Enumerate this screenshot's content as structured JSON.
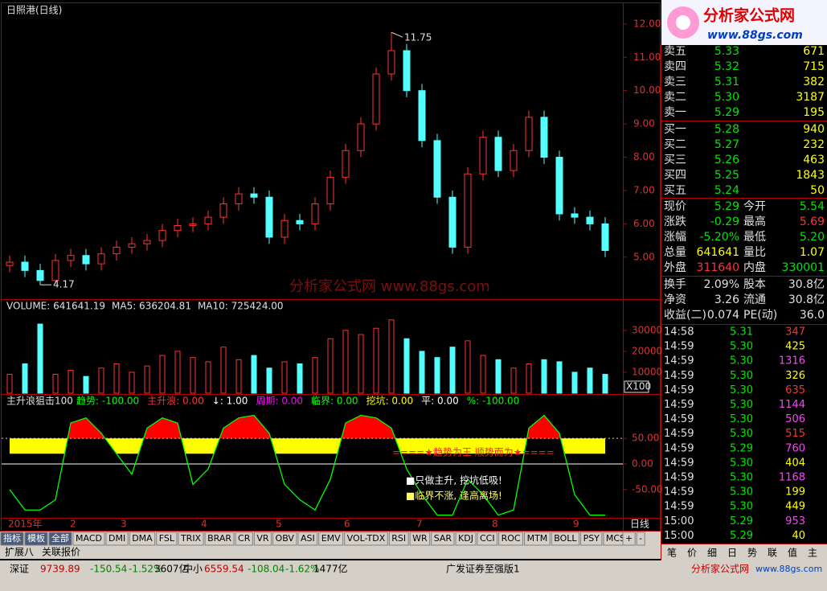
{
  "chart_data": [
    {
      "type": "candlestick",
      "title": "日照港(日线)",
      "open": [
        4.75,
        4.85,
        4.6,
        4.3,
        4.9,
        5.05,
        4.8,
        5.1,
        5.3,
        5.4,
        5.5,
        5.8,
        5.95,
        6.0,
        6.2,
        6.6,
        6.9,
        6.8,
        5.6,
        6.1,
        6.0,
        6.6,
        7.4,
        8.2,
        9.0,
        10.5,
        11.2,
        10.0,
        8.5,
        6.8,
        5.3,
        7.5,
        8.6,
        7.6,
        8.2,
        9.2,
        8.0,
        6.3,
        6.2,
        6.0
      ],
      "high": [
        5.05,
        5.05,
        4.8,
        5.1,
        5.25,
        5.25,
        5.3,
        5.5,
        5.6,
        5.7,
        6.0,
        6.15,
        6.2,
        6.4,
        6.8,
        7.1,
        7.1,
        7.0,
        6.3,
        6.3,
        6.8,
        7.6,
        8.4,
        9.2,
        10.7,
        11.75,
        11.4,
        10.2,
        8.7,
        7.0,
        7.7,
        8.8,
        8.8,
        8.4,
        9.4,
        9.4,
        8.2,
        6.5,
        6.4,
        6.2
      ],
      "low": [
        4.55,
        4.4,
        4.17,
        4.2,
        4.7,
        4.6,
        4.6,
        4.9,
        5.1,
        5.2,
        5.3,
        5.6,
        5.75,
        5.8,
        6.0,
        6.4,
        6.6,
        5.4,
        5.4,
        5.8,
        5.8,
        6.4,
        7.2,
        8.0,
        8.8,
        10.3,
        9.8,
        8.3,
        6.6,
        5.1,
        5.1,
        7.3,
        7.4,
        7.4,
        8.0,
        7.8,
        6.1,
        6.0,
        5.8,
        5.0
      ],
      "close": [
        4.85,
        4.6,
        4.3,
        4.9,
        5.05,
        4.8,
        5.1,
        5.3,
        5.4,
        5.5,
        5.8,
        5.95,
        6.0,
        6.2,
        6.6,
        6.9,
        6.8,
        5.6,
        6.1,
        6.0,
        6.6,
        7.4,
        8.2,
        9.0,
        10.5,
        11.2,
        10.0,
        8.5,
        6.8,
        5.3,
        7.5,
        8.6,
        7.6,
        8.2,
        9.2,
        8.0,
        6.3,
        6.2,
        6.0,
        5.2
      ],
      "up_color": "#ff3232",
      "down_color": "#54ffff",
      "ylim": [
        3.74,
        12.6
      ],
      "yticks": [
        {
          "value": 12,
          "label": "12.00"
        },
        {
          "value": 11,
          "label": "11.00"
        },
        {
          "value": 10,
          "label": "10.00"
        },
        {
          "value": 9,
          "label": "9.00"
        },
        {
          "value": 8,
          "label": "8.00"
        },
        {
          "value": 7,
          "label": "7.00"
        },
        {
          "value": 6,
          "label": "6.00"
        },
        {
          "value": 5,
          "label": "5.00"
        }
      ],
      "high_mark": 11.75,
      "low_mark": 4.17,
      "watermark": "分析家公式网 www.88gs.com",
      "x_labels": [
        "2015年",
        "2",
        "3",
        "4",
        "5",
        "6",
        "7",
        "8",
        "9"
      ]
    },
    {
      "type": "bar",
      "legend": [
        "VOLUME: 641641.19",
        "MA5: 636204.81",
        "MA10: 725424.00"
      ],
      "values": [
        9000,
        14000,
        33000,
        9000,
        11000,
        8000,
        12000,
        14000,
        10000,
        13000,
        18000,
        20000,
        17000,
        15000,
        22000,
        16000,
        18000,
        12000,
        15000,
        14000,
        17000,
        26000,
        30000,
        28000,
        31000,
        35000,
        26000,
        20000,
        17000,
        22000,
        25000,
        18000,
        16000,
        12000,
        14000,
        16000,
        15000,
        10000,
        12000,
        9000
      ],
      "ylim": [
        0,
        38000
      ],
      "yticks": [
        10000,
        20000,
        30000
      ],
      "unit_label": "X100"
    },
    {
      "type": "line",
      "title": "主升浪狙击100",
      "legend": [
        {
          "text": "趋势: -100.00",
          "color": "#00ff00"
        },
        {
          "text": "主升浪: 0.00",
          "color": "#ff3232"
        },
        {
          "text": "↓: 1.00",
          "color": "#ffffff"
        },
        {
          "text": "周期: 0.00",
          "color": "#ff00ff"
        },
        {
          "text": "临界: 0.00",
          "color": "#00ff00"
        },
        {
          "text": "挖坑: 0.00",
          "color": "#ffff00"
        },
        {
          "text": "平: 0.00",
          "color": "#ffffff"
        },
        {
          "text": "%: -100.00",
          "color": "#00ff00"
        }
      ],
      "values": [
        -50,
        -90,
        -90,
        -70,
        80,
        90,
        60,
        20,
        -20,
        70,
        90,
        80,
        -40,
        -10,
        70,
        90,
        95,
        60,
        -40,
        -70,
        -90,
        -30,
        80,
        95,
        90,
        70,
        -10,
        -60,
        -100,
        -100,
        -30,
        -60,
        -100,
        -90,
        70,
        95,
        60,
        -60,
        -100,
        -100
      ],
      "color": "#00ff00",
      "ylim": [
        -110,
        110
      ],
      "yticks": [
        {
          "value": 50,
          "label": "50.00"
        },
        {
          "value": 0,
          "label": "0.00"
        },
        {
          "value": -50,
          "label": "-50.00"
        }
      ],
      "annotations": [
        "====★趋势为王 顺势而为★====",
        "■只做主升, 挖坑低吸!",
        "■临界不涨, 逢高离场!"
      ],
      "period_label": "日线"
    }
  ],
  "tabs": [
    "指标",
    "模板",
    "全部",
    "MACD",
    "DMI",
    "DMA",
    "FSL",
    "TRIX",
    "BRAR",
    "CR",
    "VR",
    "OBV",
    "ASI",
    "EMV",
    "VOL-TDX",
    "RSI",
    "WR",
    "SAR",
    "KDJ",
    "CCI",
    "ROC",
    "MTM",
    "BOLL",
    "PSY",
    "MCST",
    "+",
    "-"
  ],
  "tabs2": [
    "扩展八",
    "关联报价"
  ],
  "status": [
    "深证",
    "9739.89",
    "-150.54",
    "-1.52%",
    "3607亿",
    "中小",
    "6559.54",
    "-108.04",
    "-1.62%",
    "1477亿",
    "广发证券至强版1"
  ],
  "logo": {
    "name": "分析家公式网",
    "url": "www.88gs.com"
  },
  "order_book": [
    {
      "label": "卖五",
      "price": "5.33",
      "volume": "671"
    },
    {
      "label": "卖四",
      "price": "5.32",
      "volume": "715"
    },
    {
      "label": "卖三",
      "price": "5.31",
      "volume": "382"
    },
    {
      "label": "卖二",
      "price": "5.30",
      "volume": "3187"
    },
    {
      "label": "卖一",
      "price": "5.29",
      "volume": "195"
    },
    {
      "label": "买一",
      "price": "5.28",
      "volume": "940"
    },
    {
      "label": "买二",
      "price": "5.27",
      "volume": "232"
    },
    {
      "label": "买三",
      "price": "5.26",
      "volume": "463"
    },
    {
      "label": "买四",
      "price": "5.25",
      "volume": "1843"
    },
    {
      "label": "买五",
      "price": "5.24",
      "volume": "50"
    }
  ],
  "stats": [
    [
      "现价",
      "5.29",
      "今开",
      "5.54"
    ],
    [
      "涨跌",
      "-0.29",
      "最高",
      "5.69"
    ],
    [
      "涨幅",
      "-5.20%",
      "最低",
      "5.20"
    ],
    [
      "总量",
      "641641",
      "量比",
      "1.07"
    ],
    [
      "外盘",
      "311640",
      "内盘",
      "330001"
    ],
    [
      "换手",
      "2.09%",
      "股本",
      "30.8亿"
    ],
    [
      "净资",
      "3.26",
      "流通",
      "30.8亿"
    ],
    [
      "收益(二)",
      "0.074",
      "PE(动)",
      "36.0"
    ]
  ],
  "stat_colors": [
    [
      "#00e600",
      "#00e600"
    ],
    [
      "#00e600",
      "#ff3232"
    ],
    [
      "#00e600",
      "#00e600"
    ],
    [
      "#ffff00",
      "#ffff00"
    ],
    [
      "#ff3232",
      "#00e600"
    ],
    [
      "#e0e0e0",
      "#e0e0e0"
    ],
    [
      "#e0e0e0",
      "#e0e0e0"
    ],
    [
      "#e0e0e0",
      "#e0e0e0"
    ]
  ],
  "trades": [
    {
      "time": "14:58",
      "price": "5.31",
      "volume": "347",
      "color": "#ff3232"
    },
    {
      "time": "14:59",
      "price": "5.30",
      "volume": "425",
      "color": "#ffff00"
    },
    {
      "time": "14:59",
      "price": "5.30",
      "volume": "1316",
      "color": "#ff40ff"
    },
    {
      "time": "14:59",
      "price": "5.30",
      "volume": "326",
      "color": "#ffff00"
    },
    {
      "time": "14:59",
      "price": "5.30",
      "volume": "635",
      "color": "#ff3232"
    },
    {
      "time": "14:59",
      "price": "5.30",
      "volume": "1144",
      "color": "#ff40ff"
    },
    {
      "time": "14:59",
      "price": "5.30",
      "volume": "506",
      "color": "#ff40ff"
    },
    {
      "time": "14:59",
      "price": "5.30",
      "volume": "515",
      "color": "#ff3232"
    },
    {
      "time": "14:59",
      "price": "5.29",
      "volume": "760",
      "color": "#ff40ff"
    },
    {
      "time": "14:59",
      "price": "5.30",
      "volume": "404",
      "color": "#ffff00"
    },
    {
      "time": "14:59",
      "price": "5.30",
      "volume": "1168",
      "color": "#ff40ff"
    },
    {
      "time": "14:59",
      "price": "5.30",
      "volume": "199",
      "color": "#ffff00"
    },
    {
      "time": "14:59",
      "price": "5.30",
      "volume": "449",
      "color": "#ffff00"
    },
    {
      "time": "15:00",
      "price": "5.29",
      "volume": "953",
      "color": "#ff40ff"
    },
    {
      "time": "15:00",
      "price": "5.29",
      "volume": "40",
      "color": "#ffff00"
    }
  ],
  "panel_tabs": [
    "笔",
    "价",
    "细",
    "日",
    "势",
    "联",
    "值",
    "主"
  ]
}
